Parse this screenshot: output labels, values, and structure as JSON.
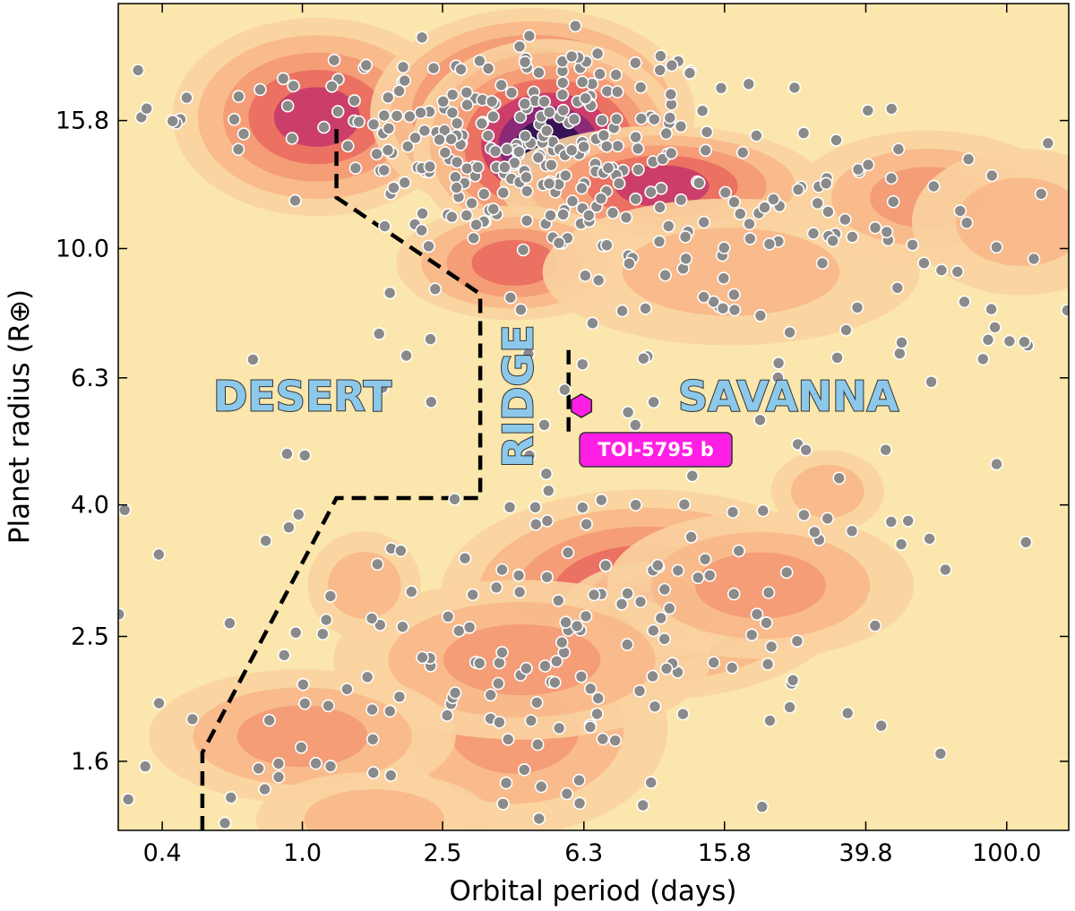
{
  "chart_data": {
    "type": "scatter",
    "xlabel": "Orbital period (days)",
    "ylabel": "Planet radius (R⊕)",
    "x_scale": "log",
    "y_scale": "log",
    "xlim": [
      0.3,
      150
    ],
    "ylim": [
      1.25,
      24
    ],
    "xticks": [
      {
        "value": 0.4,
        "label": "0.4"
      },
      {
        "value": 1.0,
        "label": "1.0"
      },
      {
        "value": 2.5,
        "label": "2.5"
      },
      {
        "value": 6.3,
        "label": "6.3"
      },
      {
        "value": 15.8,
        "label": "15.8"
      },
      {
        "value": 39.8,
        "label": "39.8"
      },
      {
        "value": 100.0,
        "label": "100.0"
      }
    ],
    "yticks": [
      {
        "value": 1.6,
        "label": "1.6"
      },
      {
        "value": 2.5,
        "label": "2.5"
      },
      {
        "value": 4.0,
        "label": "4.0"
      },
      {
        "value": 6.3,
        "label": "6.3"
      },
      {
        "value": 10.0,
        "label": "10.0"
      },
      {
        "value": 15.8,
        "label": "15.8"
      }
    ],
    "grid": false,
    "colors": {
      "background": "#fbe7ad",
      "density_levels": [
        "#fad3a0",
        "#f8b88a",
        "#f39a74",
        "#ea6d5f",
        "#c8396a",
        "#86287a",
        "#2e1050"
      ],
      "planet_points": "#8a8a8a",
      "highlight": "#ff1fe4",
      "boundary": "#000000",
      "region_label": "#8cc8ea"
    },
    "regions": [
      {
        "name": "DESERT",
        "x": 1.0,
        "y": 5.9
      },
      {
        "name": "RIDGE",
        "x": 4.1,
        "y": 5.9,
        "rotated": true
      },
      {
        "name": "SAVANNA",
        "x": 24,
        "y": 5.9
      }
    ],
    "boundaries": [
      {
        "name": "desert boundary",
        "x": [
          0.52,
          0.52,
          1.25,
          3.2,
          3.2,
          1.25,
          1.25
        ],
        "y": [
          1.25,
          1.65,
          4.1,
          4.1,
          8.5,
          12.0,
          15.5
        ]
      },
      {
        "name": "ridge boundary",
        "x": [
          5.7,
          5.7
        ],
        "y": [
          5.2,
          7.1
        ]
      }
    ],
    "highlight": {
      "label": "TOI-5795 b",
      "x": 6.2,
      "y": 5.7
    },
    "density_clumps": [
      {
        "x": 1.1,
        "y": 16.0,
        "sx": 0.75,
        "sy": 0.28,
        "lvl": 4
      },
      {
        "x": 4.5,
        "y": 16.2,
        "sx": 0.85,
        "sy": 0.3,
        "lvl": 6
      },
      {
        "x": 5.0,
        "y": 14.5,
        "sx": 0.7,
        "sy": 0.3,
        "lvl": 6
      },
      {
        "x": 10.5,
        "y": 12.5,
        "sx": 0.85,
        "sy": 0.16,
        "lvl": 4
      },
      {
        "x": 4.0,
        "y": 9.5,
        "sx": 0.6,
        "sy": 0.15,
        "lvl": 3
      },
      {
        "x": 16.5,
        "y": 9.2,
        "sx": 1.0,
        "sy": 0.2,
        "lvl": 1
      },
      {
        "x": 60,
        "y": 12.0,
        "sx": 0.7,
        "sy": 0.18,
        "lvl": 2
      },
      {
        "x": 110,
        "y": 11.0,
        "sx": 0.55,
        "sy": 0.2,
        "lvl": 1
      },
      {
        "x": 9.5,
        "y": 2.9,
        "sx": 1.1,
        "sy": 0.3,
        "lvl": 4
      },
      {
        "x": 10.0,
        "y": 2.75,
        "sx": 0.45,
        "sy": 0.12,
        "lvl": 4
      },
      {
        "x": 4.0,
        "y": 1.8,
        "sx": 0.8,
        "sy": 0.3,
        "lvl": 2
      },
      {
        "x": 4.2,
        "y": 2.3,
        "sx": 1.0,
        "sy": 0.22,
        "lvl": 2
      },
      {
        "x": 20,
        "y": 3.0,
        "sx": 0.8,
        "sy": 0.2,
        "lvl": 2
      },
      {
        "x": 1.0,
        "y": 1.75,
        "sx": 0.8,
        "sy": 0.18,
        "lvl": 2
      },
      {
        "x": 1.5,
        "y": 3.0,
        "sx": 0.25,
        "sy": 0.14,
        "lvl": 1
      },
      {
        "x": 31,
        "y": 4.2,
        "sx": 0.25,
        "sy": 0.1,
        "lvl": 1
      },
      {
        "x": 1.6,
        "y": 1.3,
        "sx": 0.6,
        "sy": 0.12,
        "lvl": 1
      }
    ],
    "point_clusters": [
      {
        "x": 4.5,
        "y": 14.5,
        "sx": 0.55,
        "sy": 0.18,
        "n": 210
      },
      {
        "x": 10.5,
        "y": 12.2,
        "sx": 0.55,
        "sy": 0.14,
        "n": 50
      },
      {
        "x": 1.5,
        "y": 17.0,
        "sx": 0.6,
        "sy": 0.2,
        "n": 40
      },
      {
        "x": 20,
        "y": 9.5,
        "sx": 1.0,
        "sy": 0.2,
        "n": 55
      },
      {
        "x": 70,
        "y": 11.0,
        "sx": 0.8,
        "sy": 0.15,
        "n": 30
      },
      {
        "x": 10.0,
        "y": 2.8,
        "sx": 0.9,
        "sy": 0.22,
        "n": 90
      },
      {
        "x": 4.2,
        "y": 2.0,
        "sx": 0.8,
        "sy": 0.3,
        "n": 70
      },
      {
        "x": 1.0,
        "y": 1.7,
        "sx": 0.8,
        "sy": 0.18,
        "n": 25
      },
      {
        "x": 3.0,
        "y": 7.0,
        "sx": 3.0,
        "sy": 0.5,
        "n": 45
      },
      {
        "x": 30,
        "y": 5.0,
        "sx": 1.5,
        "sy": 0.4,
        "n": 25
      }
    ]
  }
}
